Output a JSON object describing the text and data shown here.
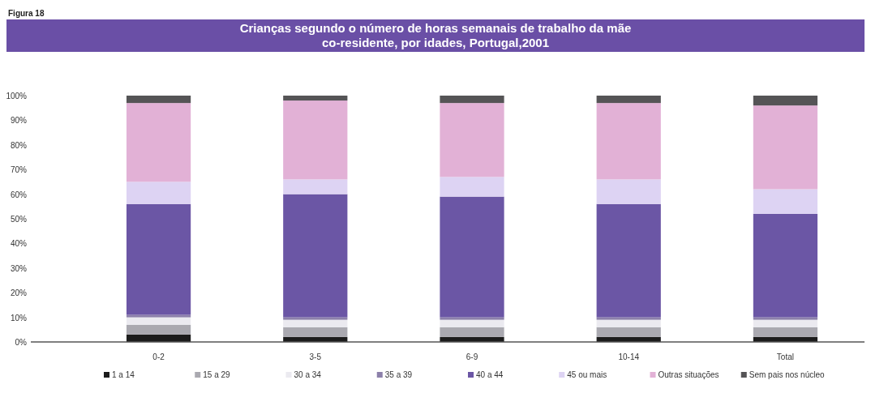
{
  "chart_data": {
    "type": "bar",
    "stacked": true,
    "title": "Crianças segundo o número de horas semanais de trabalho da mãe co-residente, por idades, Portugal,2001",
    "annotations": [
      "Figura 18"
    ],
    "categories": [
      "0-2",
      "3-5",
      "6-9",
      "10-14",
      "Total"
    ],
    "series": [
      {
        "name": "1 a 14",
        "color": "#1c1c1c",
        "values": [
          3,
          2,
          2,
          2,
          2
        ]
      },
      {
        "name": "15 a 29",
        "color": "#aaa9b0",
        "values": [
          4,
          4,
          4,
          4,
          4
        ]
      },
      {
        "name": "30 a 34",
        "color": "#ebeaf0",
        "values": [
          3,
          3,
          3,
          3,
          3
        ]
      },
      {
        "name": "35 a 39",
        "color": "#8c80aa",
        "values": [
          1,
          1,
          1,
          1,
          1
        ]
      },
      {
        "name": "40 a 44",
        "color": "#6b56a5",
        "values": [
          45,
          50,
          49,
          46,
          42
        ]
      },
      {
        "name": "45  ou mais",
        "color": "#ddd3f3",
        "values": [
          9,
          6,
          8,
          10,
          10
        ]
      },
      {
        "name": "Outras situações",
        "color": "#e2b1d6",
        "values": [
          32,
          32,
          30,
          31,
          34
        ]
      },
      {
        "name": "Sem pais nos núcleo",
        "color": "#555456",
        "values": [
          3,
          2,
          3,
          3,
          4
        ]
      }
    ],
    "ylim": [
      0,
      100
    ],
    "yticks": [
      {
        "value": 0,
        "label": "0%"
      },
      {
        "value": 10,
        "label": "10%"
      },
      {
        "value": 20,
        "label": "20%"
      },
      {
        "value": 30,
        "label": "30%"
      },
      {
        "value": 40,
        "label": "40%"
      },
      {
        "value": 50,
        "label": "50%"
      },
      {
        "value": 60,
        "label": "60%"
      },
      {
        "value": 70,
        "label": "70%"
      },
      {
        "value": 80,
        "label": "80%"
      },
      {
        "value": 90,
        "label": "90%"
      },
      {
        "value": 100,
        "label": "100%"
      }
    ],
    "legend": "bottom"
  }
}
